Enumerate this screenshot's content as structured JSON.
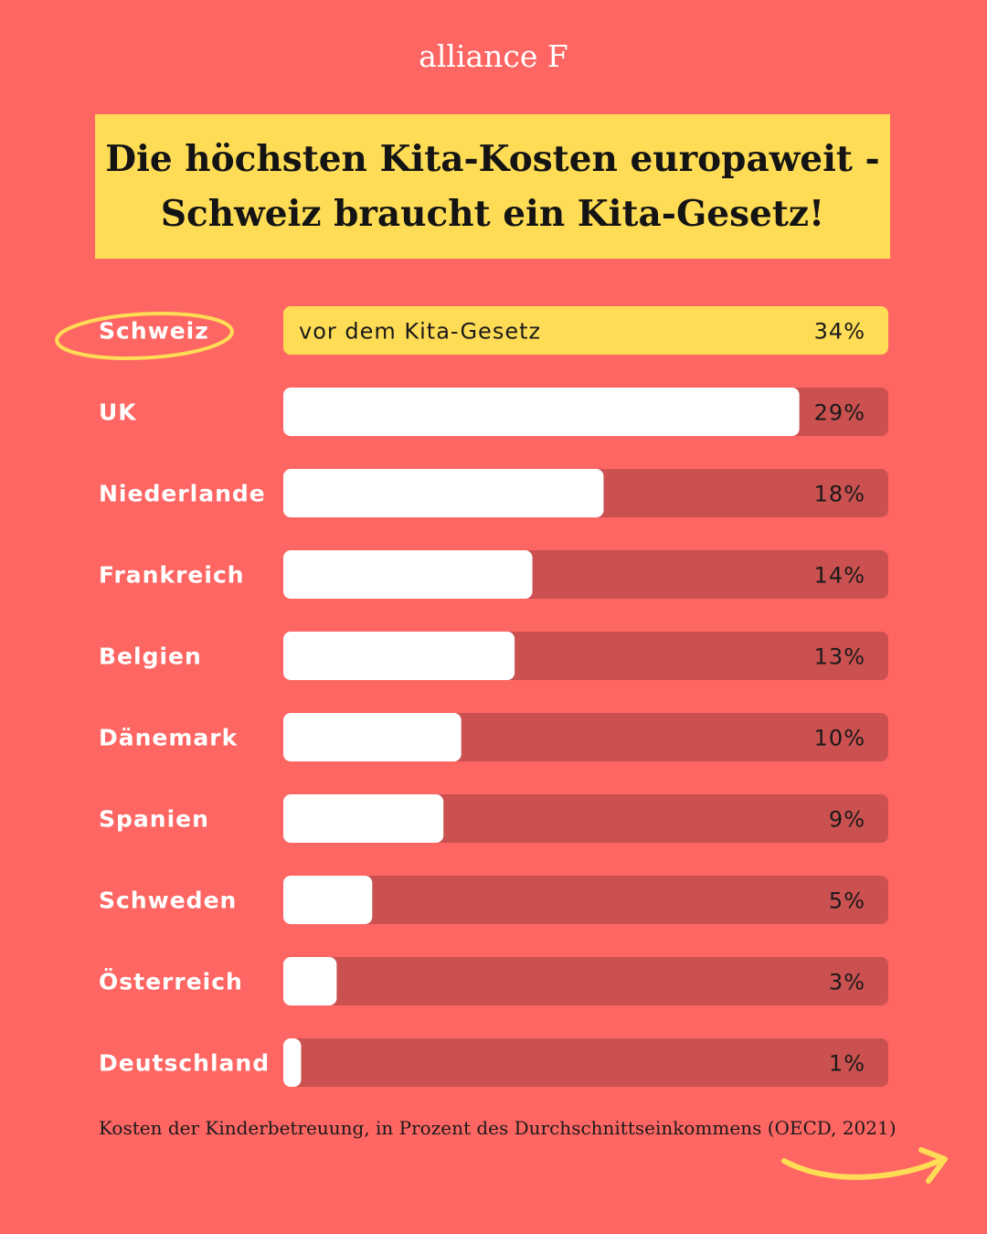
{
  "brand": "alliance F",
  "title": {
    "line1": "Die höchsten Kita-Kosten europaweit -",
    "line2": "Schweiz braucht ein Kita-Gesetz!"
  },
  "source": "Kosten der Kinderbetreuung, in Prozent des Durchschnittseinkommens (OECD, 2021)",
  "colors": {
    "background": "#fe6663",
    "highlight": "#ffdc55",
    "bar_fill": "#ffffff",
    "bar_track": "#cb5050",
    "text_dark": "#1a1a1a"
  },
  "chart_data": {
    "type": "bar",
    "orientation": "horizontal",
    "categories": [
      "Schweiz",
      "UK",
      "Niederlande",
      "Frankreich",
      "Belgien",
      "Dänemark",
      "Spanien",
      "Schweden",
      "Österreich",
      "Deutschland"
    ],
    "values": [
      34,
      29,
      18,
      14,
      13,
      10,
      9,
      5,
      3,
      1
    ],
    "value_labels": [
      "34%",
      "29%",
      "18%",
      "14%",
      "13%",
      "10%",
      "9%",
      "5%",
      "3%",
      "1%"
    ],
    "highlight_category": "Schweiz",
    "highlight_annotation": "vor dem Kita-Gesetz",
    "xlim": [
      0,
      34
    ]
  }
}
